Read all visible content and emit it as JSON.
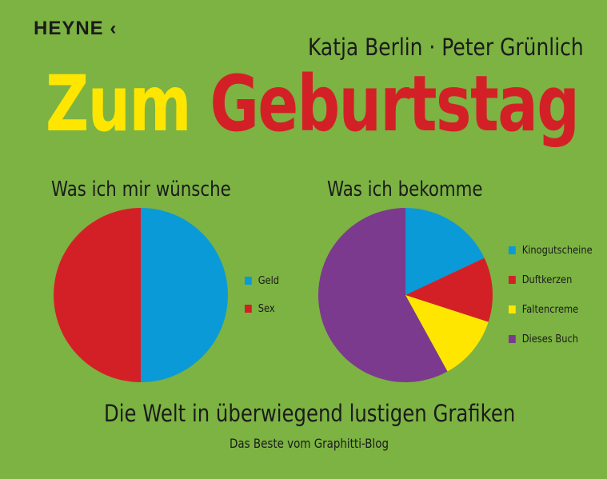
{
  "publisher": "HEYNE",
  "publisher_mark": "‹",
  "authors": "Katja Berlin · Peter Grünlich",
  "title": {
    "word1": "Zum",
    "word2": "Geburtstag"
  },
  "subtitle": "Die Welt in überwiegend lustigen Grafiken",
  "tagline": "Das Beste vom Graphitti-Blog",
  "colors": {
    "background": "#7cb342",
    "yellow": "#ffe600",
    "red": "#d32027",
    "blue": "#0a9ad7",
    "purple": "#7b3a8e"
  },
  "chart_data": [
    {
      "type": "pie",
      "title": "Was ich mir wünsche",
      "legend_position": "right",
      "slices": [
        {
          "label": "Geld",
          "value": 50,
          "color": "#0a9ad7"
        },
        {
          "label": "Sex",
          "value": 50,
          "color": "#d32027"
        }
      ]
    },
    {
      "type": "pie",
      "title": "Was ich bekomme",
      "legend_position": "right",
      "slices": [
        {
          "label": "Kinogutscheine",
          "value": 18,
          "color": "#0a9ad7"
        },
        {
          "label": "Duftkerzen",
          "value": 12,
          "color": "#d32027"
        },
        {
          "label": "Faltencreme",
          "value": 12,
          "color": "#ffe600"
        },
        {
          "label": "Dieses Buch",
          "value": 58,
          "color": "#7b3a8e"
        }
      ]
    }
  ]
}
